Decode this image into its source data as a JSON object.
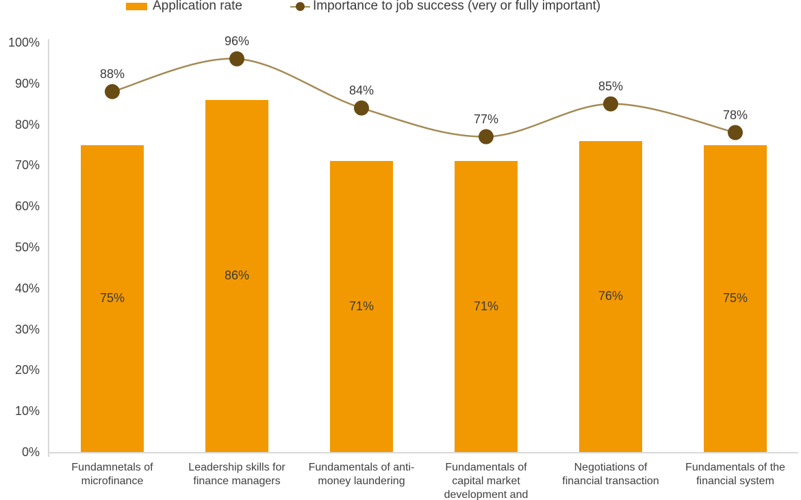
{
  "colors": {
    "bar": "#f29901",
    "line": "#a38a54",
    "marker": "#694b14",
    "axis": "#d9d9d9",
    "text": "#3a3a3a",
    "axis_text": "#404040"
  },
  "chart_data": {
    "type": "bar+line combo",
    "title": "",
    "xlabel": "",
    "ylabel": "",
    "ylim": [
      0,
      100
    ],
    "yticks": [
      "0%",
      "10%",
      "20%",
      "30%",
      "40%",
      "50%",
      "60%",
      "70%",
      "80%",
      "90%",
      "100%"
    ],
    "grid": false,
    "legend_position": "top",
    "categories": [
      "Fundamnetals of microfinance",
      "Leadership skills for finance managers",
      "Fundamentals of anti-money laundering",
      "Fundamentals of capital market development and",
      "Negotiations of financial transaction",
      "Fundamentals of the financial system"
    ],
    "series": [
      {
        "name": "Application rate",
        "type": "bar",
        "values": [
          75,
          86,
          71,
          71,
          76,
          75
        ],
        "data_labels": [
          "75%",
          "86%",
          "71%",
          "71%",
          "76%",
          "75%"
        ]
      },
      {
        "name": "Importance to job success (very or fully important)",
        "type": "line",
        "smooth": true,
        "values": [
          88,
          96,
          84,
          77,
          85,
          78
        ],
        "data_labels": [
          "88%",
          "96%",
          "84%",
          "77%",
          "85%",
          "78%"
        ]
      }
    ]
  }
}
